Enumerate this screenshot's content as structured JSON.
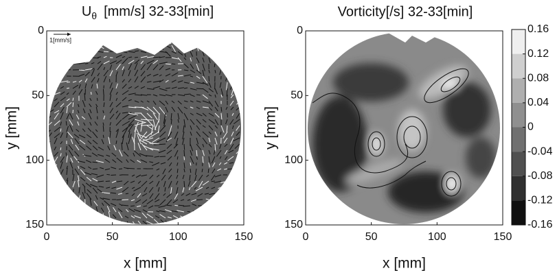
{
  "chart_data": [
    {
      "type": "quiver",
      "title": {
        "main": "U",
        "subscript": "θ",
        "rest": "[mm/s] 32-33[min]"
      },
      "x_label": "x [mm]",
      "y_label": "y [mm]",
      "xlim": [
        0,
        150
      ],
      "ylim": [
        0,
        150
      ],
      "y_inverted": true,
      "xticks": [
        0,
        50,
        100,
        150
      ],
      "yticks": [
        0,
        50,
        100,
        150
      ],
      "reference_label": "1[mm/s]"
    },
    {
      "type": "contour",
      "title": "Vorticity[/s] 32-33[min]",
      "x_label": "x [mm]",
      "y_label": "y [mm]",
      "xlim": [
        0,
        150
      ],
      "ylim": [
        0,
        150
      ],
      "y_inverted": true,
      "xticks": [
        0,
        50,
        100,
        150
      ],
      "yticks": [
        0,
        50,
        100,
        150
      ],
      "clim": [
        -0.16,
        0.16
      ],
      "cticks": [
        0.16,
        0.12,
        0.08,
        0.04,
        0,
        -0.04,
        -0.08,
        -0.12,
        -0.16
      ]
    }
  ]
}
